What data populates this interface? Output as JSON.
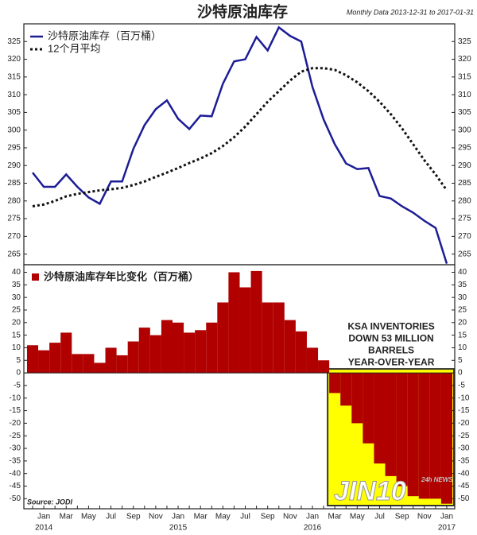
{
  "chart_data": [
    {
      "type": "line",
      "title": "沙特原油库存",
      "subtitle": "Monthly Data 2013-12-31 to 2017-01-31",
      "ylim": [
        262,
        330
      ],
      "yticks": [
        265,
        270,
        275,
        280,
        285,
        290,
        295,
        300,
        305,
        310,
        315,
        320,
        325
      ],
      "series": [
        {
          "name": "沙特原油库存（百万桶）",
          "color": "#1c1c96",
          "dashed": false,
          "values": [
            288,
            284,
            284,
            287.5,
            284,
            281,
            279.2,
            285.5,
            285.5,
            294.7,
            301.4,
            305.9,
            308.4,
            303.2,
            300.3,
            304.1,
            303.9,
            313.1,
            319.4,
            320,
            326.3,
            322.5,
            329,
            326.6,
            325,
            312.2,
            303,
            296,
            290.6,
            289,
            289.3,
            281.4,
            280.7,
            278.5,
            276.7,
            274.4,
            272.4,
            262.3
          ]
        },
        {
          "name": "12个月平均",
          "color": "#111111",
          "dashed": true,
          "values": [
            278.5,
            279,
            280,
            281.3,
            282,
            282.5,
            283,
            283.3,
            283.7,
            284.5,
            285.5,
            286.8,
            288,
            289.3,
            290.7,
            292,
            293.5,
            295.5,
            298,
            301,
            304.5,
            308,
            311,
            314,
            316.5,
            317.5,
            317.5,
            317,
            315.5,
            313.5,
            311,
            308,
            304.5,
            300.5,
            296,
            291.5,
            287.5,
            283
          ]
        }
      ]
    },
    {
      "type": "bar",
      "categories": [
        null,
        "Jan",
        null,
        "Mar",
        null,
        "May",
        null,
        "Jul",
        null,
        "Sep",
        null,
        "Nov",
        null,
        "Jan",
        null,
        "Mar",
        null,
        "May",
        null,
        "Jul",
        null,
        "Sep",
        null,
        "Nov",
        null,
        "Jan",
        null,
        "Mar",
        null,
        "May",
        null,
        "Jul",
        null,
        "Sep",
        null,
        "Nov",
        null,
        "Jan"
      ],
      "years": [
        null,
        "2014",
        null,
        null,
        null,
        null,
        null,
        null,
        null,
        null,
        null,
        null,
        null,
        "2015",
        null,
        null,
        null,
        null,
        null,
        null,
        null,
        null,
        null,
        null,
        null,
        "2016",
        null,
        null,
        null,
        null,
        null,
        null,
        null,
        null,
        null,
        null,
        null,
        "2017"
      ],
      "ylim": [
        -54,
        43
      ],
      "yticks": [
        -50,
        -45,
        -40,
        -35,
        -30,
        -25,
        -20,
        -15,
        -10,
        -5,
        0,
        5,
        10,
        15,
        20,
        25,
        30,
        35,
        40
      ],
      "series": [
        {
          "name": "沙特原油库存年比变化（百万桶）",
          "color": "#b00000",
          "values": [
            11,
            9,
            12,
            16,
            7.5,
            7.5,
            4,
            10,
            7,
            12.5,
            18,
            15,
            21,
            20,
            16,
            17,
            20,
            28,
            40,
            34,
            40.5,
            28,
            28,
            21,
            16.5,
            10,
            5,
            -8,
            -13,
            -20,
            -28,
            -36,
            -41,
            -45,
            -49,
            -50,
            -50,
            -52
          ]
        }
      ],
      "highlight_color": "#ffff00",
      "annotation": [
        "KSA INVENTORIES",
        "DOWN 53 MILLION",
        "BARRELS",
        "YEAR-OVER-YEAR"
      ],
      "source": "Source: JODI",
      "watermark": [
        "JIN10",
        "24h NEWS"
      ]
    }
  ]
}
